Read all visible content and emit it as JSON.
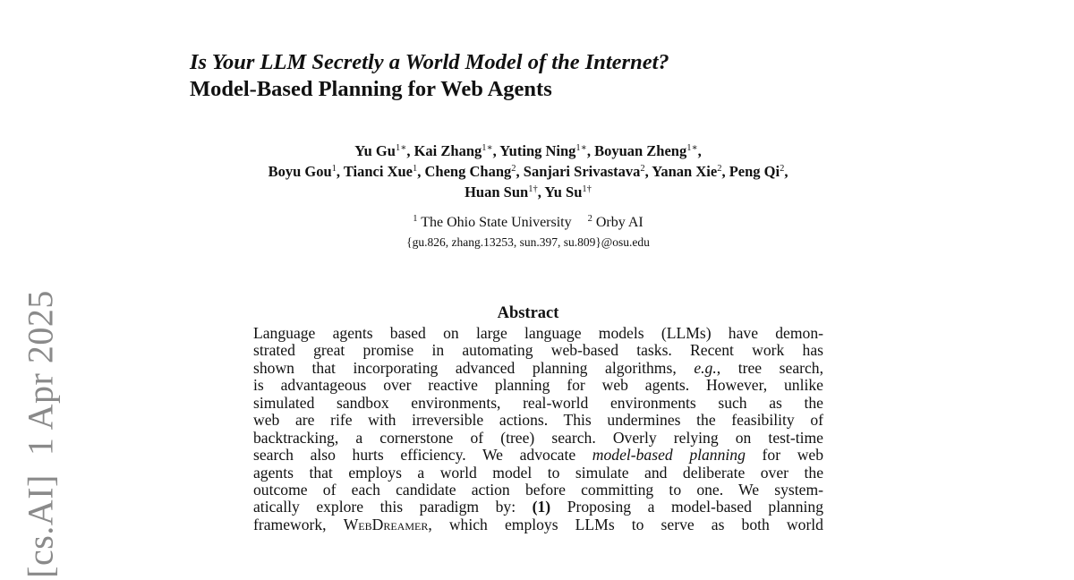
{
  "sidebar": {
    "text": "[cs.AI]  1 Apr 2025"
  },
  "title": {
    "line1": "Is Your LLM Secretly a World Model of the Internet?",
    "line2": "Model-Based Planning for Web Agents"
  },
  "authors": [
    {
      "name": "Yu Gu",
      "mark": "1∗"
    },
    {
      "name": "Kai Zhang",
      "mark": "1∗"
    },
    {
      "name": "Yuting Ning",
      "mark": "1∗"
    },
    {
      "name": "Boyuan Zheng",
      "mark": "1∗"
    },
    {
      "name": "Boyu Gou",
      "mark": "1"
    },
    {
      "name": "Tianci Xue",
      "mark": "1"
    },
    {
      "name": "Cheng Chang",
      "mark": "2"
    },
    {
      "name": "Sanjari Srivastava",
      "mark": "2"
    },
    {
      "name": "Yanan Xie",
      "mark": "2"
    },
    {
      "name": "Peng Qi",
      "mark": "2"
    },
    {
      "name": "Huan Sun",
      "mark": "1†"
    },
    {
      "name": "Yu Su",
      "mark": "1†"
    }
  ],
  "affiliations": [
    {
      "mark": "1",
      "name": "The Ohio State University"
    },
    {
      "mark": "2",
      "name": "Orby AI"
    }
  ],
  "email": "{gu.826, zhang.13253, sun.397, su.809}@osu.edu",
  "abstract": {
    "heading": "Abstract",
    "l0": "Language agents based on large language models (LLMs) have demon-",
    "l1": "strated great promise in automating web-based tasks.  Recent work has",
    "l2a": "shown that incorporating advanced planning algorithms, ",
    "l2b": "e.g.",
    "l2c": ", tree search,",
    "l3": "is advantageous over reactive planning for web agents. However, unlike",
    "l4": "simulated sandbox environments, real-world environments such as the",
    "l5": "web are rife with irreversible actions. This undermines the feasibility of",
    "l6": "backtracking, a cornerstone of (tree) search. Overly relying on test-time",
    "l7a": "search also hurts efficiency.  We advocate ",
    "l7b": "model-based planning",
    "l7c": " for web",
    "l8": "agents that employs a world model to simulate and deliberate over the",
    "l9": "outcome of each candidate action before committing to one. We system-",
    "l10a": "atically explore this paradigm by: ",
    "l10b": "(1)",
    "l10c": " Proposing a model-based planning",
    "l11a": "framework, ",
    "l11b": "WebDreamer",
    "l11c": ", which employs LLMs to serve as both world"
  }
}
